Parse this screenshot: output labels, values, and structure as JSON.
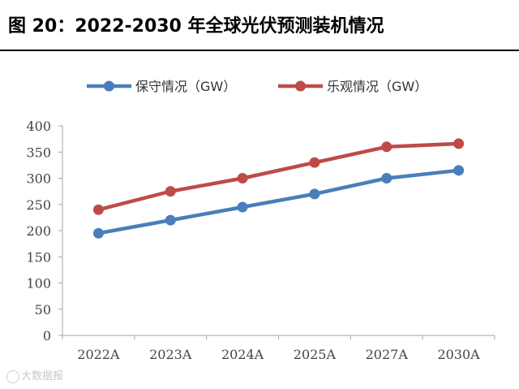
{
  "page": {
    "title": "图 20：2022-2030 年全球光伏预测装机情况"
  },
  "watermark": "大数据报",
  "chart_data": {
    "type": "line",
    "title": "",
    "xlabel": "",
    "ylabel": "",
    "categories": [
      "2022A",
      "2023A",
      "2024A",
      "2025A",
      "2027A",
      "2030A"
    ],
    "series": [
      {
        "name": "保守情况（GW）",
        "values": [
          195,
          220,
          245,
          270,
          300,
          315
        ],
        "color": "#4a7ebb"
      },
      {
        "name": "乐观情况（GW）",
        "values": [
          240,
          275,
          300,
          330,
          360,
          366
        ],
        "color": "#be4b48"
      }
    ],
    "ylim": [
      0,
      400
    ],
    "yticks": [
      0,
      50,
      100,
      150,
      200,
      250,
      300,
      350,
      400
    ],
    "grid": false,
    "legend": "top"
  }
}
